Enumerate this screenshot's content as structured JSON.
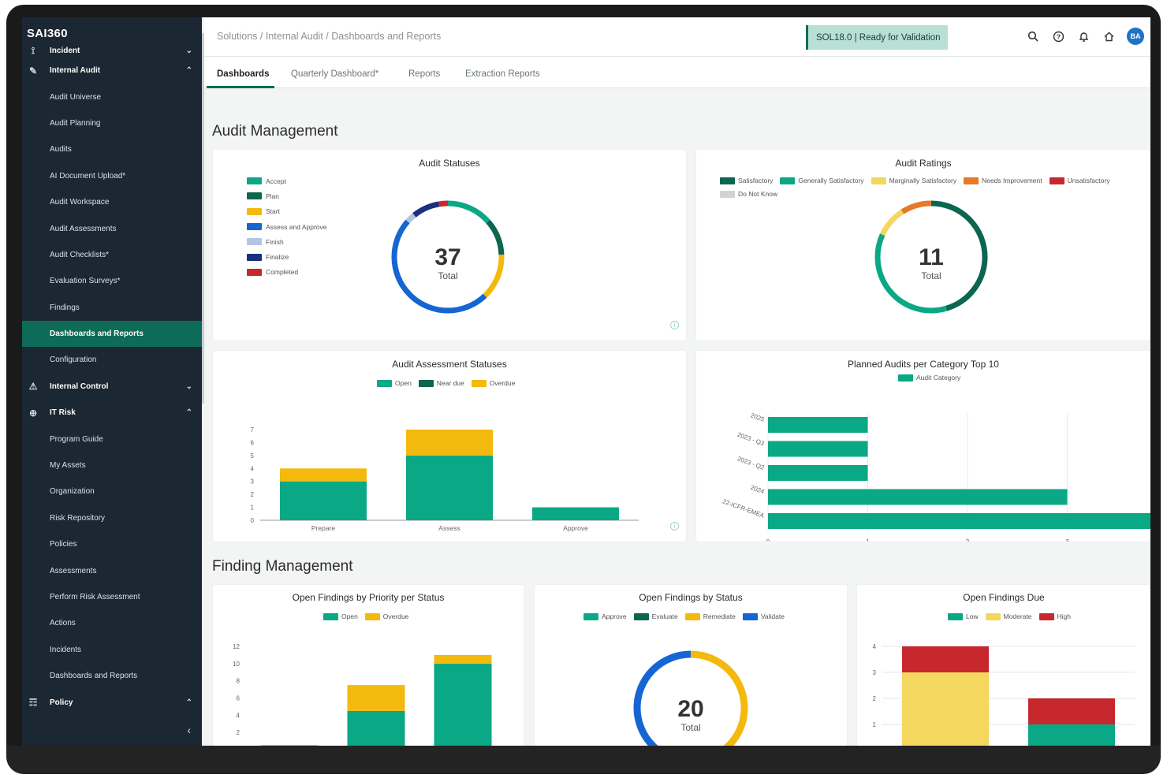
{
  "app": {
    "logo": "SAI360"
  },
  "sidebar": {
    "items": [
      {
        "label": "Incident",
        "level": "top",
        "icon": "incident-icon",
        "chevron": "⌄"
      },
      {
        "label": "Internal Audit",
        "level": "top",
        "icon": "audit-icon",
        "chevron": "⌃"
      },
      {
        "label": "Audit Universe",
        "level": "sub"
      },
      {
        "label": "Audit Planning",
        "level": "sub"
      },
      {
        "label": "Audits",
        "level": "sub"
      },
      {
        "label": "AI Document Upload*",
        "level": "sub"
      },
      {
        "label": "Audit Workspace",
        "level": "sub"
      },
      {
        "label": "Audit Assessments",
        "level": "sub"
      },
      {
        "label": "Audit Checklists*",
        "level": "sub"
      },
      {
        "label": "Evaluation Surveys*",
        "level": "sub"
      },
      {
        "label": "Findings",
        "level": "sub"
      },
      {
        "label": "Dashboards and Reports",
        "level": "sub",
        "active": true
      },
      {
        "label": "Configuration",
        "level": "sub"
      },
      {
        "label": "Internal Control",
        "level": "top",
        "icon": "warning-icon",
        "chevron": "⌄"
      },
      {
        "label": "IT Risk",
        "level": "top",
        "icon": "globe-icon",
        "chevron": "⌃"
      },
      {
        "label": "Program Guide",
        "level": "sub"
      },
      {
        "label": "My Assets",
        "level": "sub"
      },
      {
        "label": "Organization",
        "level": "sub"
      },
      {
        "label": "Risk Repository",
        "level": "sub"
      },
      {
        "label": "Policies",
        "level": "sub"
      },
      {
        "label": "Assessments",
        "level": "sub"
      },
      {
        "label": "Perform Risk Assessment",
        "level": "sub"
      },
      {
        "label": "Actions",
        "level": "sub"
      },
      {
        "label": "Incidents",
        "level": "sub"
      },
      {
        "label": "Dashboards and Reports",
        "level": "sub"
      },
      {
        "label": "Policy",
        "level": "top",
        "icon": "policy-icon",
        "chevron": "⌃"
      }
    ],
    "collapse_glyph": "‹"
  },
  "header": {
    "breadcrumb": "Solutions / Internal Audit / Dashboards and Reports",
    "status": "SOL18.0 | Ready for Validation",
    "user_initials": "BA",
    "icons": [
      "search-icon",
      "help-icon",
      "bell-icon",
      "home-icon"
    ]
  },
  "tabs": [
    {
      "label": "Dashboards",
      "active": true
    },
    {
      "label": "Quarterly Dashboard*"
    },
    {
      "label": "Reports"
    },
    {
      "label": "Extraction Reports"
    }
  ],
  "colors": {
    "brand": "#0e6b57",
    "teal": "#0aa884",
    "dark_green": "#0d6650",
    "yellow": "#f4b90d",
    "blue": "#1565d3",
    "light_blue": "#b3c5e3",
    "navy": "#1a2f7e",
    "red": "#c6282e",
    "orange": "#e57a2a",
    "pale_yellow": "#f3d75f",
    "grey": "#d0d3d6"
  },
  "sections": {
    "audit": "Audit Management",
    "finding": "Finding Management"
  },
  "cards": {
    "audit_statuses": {
      "title": "Audit Statuses",
      "total_value": "37",
      "total_label": "Total",
      "legend": [
        {
          "label": "Accept",
          "color": "#0aa884"
        },
        {
          "label": "Plan",
          "color": "#0d6650"
        },
        {
          "label": "Start",
          "color": "#f4b90d"
        },
        {
          "label": "Assess and Approve",
          "color": "#1565d3"
        },
        {
          "label": "Finish",
          "color": "#b3c5e3"
        },
        {
          "label": "Finalize",
          "color": "#1a2f7e"
        },
        {
          "label": "Completed",
          "color": "#c6282e"
        }
      ]
    },
    "audit_ratings": {
      "title": "Audit Ratings",
      "total_value": "11",
      "total_label": "Total",
      "legend": [
        {
          "label": "Satisfactory",
          "color": "#0d6650"
        },
        {
          "label": "Generally Satisfactory",
          "color": "#0aa884"
        },
        {
          "label": "Marginally Satisfactory",
          "color": "#f3d75f"
        },
        {
          "label": "Needs Improvement",
          "color": "#e57a2a"
        },
        {
          "label": "Unsatisfactory",
          "color": "#c6282e"
        },
        {
          "label": "Do Not Know",
          "color": "#d0d3d6"
        }
      ]
    },
    "audit_assessment_statuses": {
      "title": "Audit Assessment Statuses",
      "legend": [
        {
          "label": "Open",
          "color": "#0aa884"
        },
        {
          "label": "Near due",
          "color": "#0d6650"
        },
        {
          "label": "Overdue",
          "color": "#f4b90d"
        }
      ]
    },
    "planned_audits": {
      "title": "Planned Audits per Category Top 10",
      "legend": [
        {
          "label": "Audit Category",
          "color": "#0aa884"
        }
      ]
    },
    "findings_priority": {
      "title": "Open Findings by Priority per Status",
      "legend": [
        {
          "label": "Open",
          "color": "#0aa884"
        },
        {
          "label": "Overdue",
          "color": "#f4b90d"
        }
      ]
    },
    "findings_status": {
      "title": "Open Findings by Status",
      "total_value": "20",
      "total_label": "Total",
      "legend": [
        {
          "label": "Approve",
          "color": "#0aa884"
        },
        {
          "label": "Evaluate",
          "color": "#0d6650"
        },
        {
          "label": "Remediate",
          "color": "#f4b90d"
        },
        {
          "label": "Validate",
          "color": "#1565d3"
        }
      ]
    },
    "findings_due": {
      "title": "Open Findings Due",
      "legend": [
        {
          "label": "Low",
          "color": "#0aa884"
        },
        {
          "label": "Moderate",
          "color": "#f3d75f"
        },
        {
          "label": "High",
          "color": "#c6282e"
        }
      ]
    }
  },
  "chart_data": [
    {
      "id": "audit_statuses",
      "type": "pie",
      "title": "Audit Statuses",
      "categories": [
        "Accept",
        "Plan",
        "Start",
        "Assess and Approve",
        "Finish",
        "Finalize",
        "Completed"
      ],
      "values": [
        5,
        4,
        5,
        18,
        1,
        3,
        1
      ],
      "colors": [
        "#0aa884",
        "#0d6650",
        "#f4b90d",
        "#1565d3",
        "#b3c5e3",
        "#1a2f7e",
        "#c6282e"
      ]
    },
    {
      "id": "audit_ratings",
      "type": "pie",
      "title": "Audit Ratings",
      "categories": [
        "Satisfactory",
        "Generally Satisfactory",
        "Marginally Satisfactory",
        "Needs Improvement"
      ],
      "values": [
        5,
        4,
        1,
        1
      ],
      "colors": [
        "#0d6650",
        "#0aa884",
        "#f3d75f",
        "#e57a2a"
      ]
    },
    {
      "id": "audit_assessment_statuses",
      "type": "bar",
      "title": "Audit Assessment Statuses",
      "categories": [
        "Prepare",
        "Assess",
        "Approve"
      ],
      "series": [
        {
          "name": "Open",
          "values": [
            3,
            5,
            1
          ],
          "color": "#0aa884"
        },
        {
          "name": "Overdue",
          "values": [
            1,
            2,
            0
          ],
          "color": "#f4b90d"
        }
      ],
      "ylim": [
        0,
        7
      ],
      "yticks": [
        0,
        1,
        2,
        3,
        4,
        5,
        6,
        7
      ]
    },
    {
      "id": "planned_audits",
      "type": "bar",
      "orientation": "horizontal",
      "title": "Planned Audits per Category Top 10",
      "categories": [
        "2025",
        "2023 - Q3",
        "2023 - Q2",
        "2024",
        "22-ICFR-EMEA"
      ],
      "series": [
        {
          "name": "Audit Category",
          "values": [
            1,
            1,
            1,
            3,
            4
          ],
          "color": "#0aa884"
        }
      ],
      "xlim": [
        0,
        4
      ],
      "xticks": [
        0,
        1,
        2,
        3,
        4
      ]
    },
    {
      "id": "findings_priority",
      "type": "bar",
      "title": "Open Findings by Priority per Status",
      "categories": [
        "",
        "",
        ""
      ],
      "series": [
        {
          "name": "Open",
          "values": [
            0.5,
            4.5,
            10
          ],
          "color": "#0aa884"
        },
        {
          "name": "Overdue",
          "values": [
            0,
            3,
            1
          ],
          "color": "#f4b90d"
        }
      ],
      "ylim": [
        0,
        12
      ],
      "yticks": [
        2,
        4,
        6,
        8,
        10,
        12
      ]
    },
    {
      "id": "findings_status",
      "type": "pie",
      "title": "Open Findings by Status",
      "categories": [
        "Remediate",
        "Validate"
      ],
      "values": [
        9,
        11
      ],
      "colors": [
        "#f4b90d",
        "#1565d3"
      ]
    },
    {
      "id": "findings_due",
      "type": "bar",
      "title": "Open Findings Due",
      "categories": [
        "",
        ""
      ],
      "series": [
        {
          "name": "Low",
          "values": [
            0,
            1
          ],
          "color": "#0aa884"
        },
        {
          "name": "Moderate",
          "values": [
            3,
            0
          ],
          "color": "#f3d75f"
        },
        {
          "name": "High",
          "values": [
            1,
            1
          ],
          "color": "#c6282e"
        }
      ],
      "ylim": [
        0,
        4
      ],
      "yticks": [
        1,
        2,
        3,
        4
      ]
    }
  ]
}
